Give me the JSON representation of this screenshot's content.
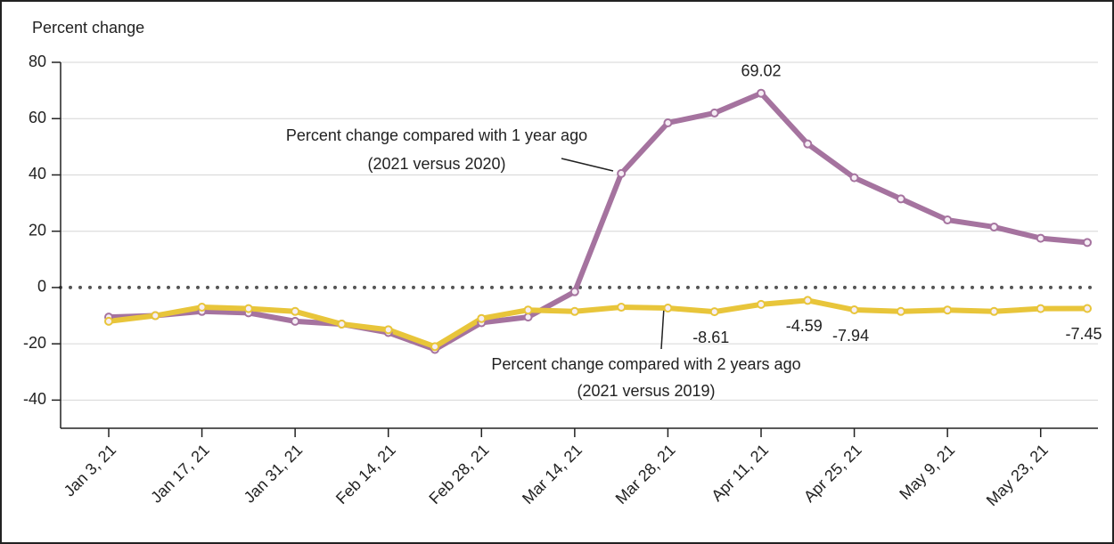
{
  "chart_data": {
    "type": "line",
    "y_label": "Percent change",
    "categories": [
      "Jan 3, 21",
      null,
      "Jan 17, 21",
      null,
      "Jan 31, 21",
      null,
      "Feb 14, 21",
      null,
      "Feb 28, 21",
      null,
      "Mar 14, 21",
      null,
      "Mar 28, 21",
      null,
      "Apr 11, 21",
      null,
      "Apr 25, 21",
      null,
      "May 9, 21",
      null,
      "May 23, 21",
      null
    ],
    "series": [
      {
        "name": "Percent change compared with 1 year ago (2021 versus 2020)",
        "color": "#a5739f",
        "label_lines": [
          "Percent change compared with 1 year ago",
          "(2021 versus 2020)"
        ],
        "values": [
          -10.5,
          -10,
          -8.5,
          -9,
          -12,
          -13,
          -16,
          -22,
          -12.5,
          -10.5,
          -1.5,
          40.5,
          58.5,
          62,
          69.02,
          51,
          39,
          31.5,
          24,
          21.5,
          17.5,
          16
        ],
        "value_labels": [
          null,
          null,
          null,
          null,
          null,
          null,
          null,
          null,
          null,
          null,
          null,
          null,
          null,
          null,
          "69.02",
          null,
          null,
          null,
          null,
          null,
          null,
          null
        ]
      },
      {
        "name": "Percent change compared with 2 years ago (2021 versus 2019)",
        "color": "#e8c53a",
        "label_lines": [
          "Percent change compared with 2 years ago",
          "(2021 versus 2019)"
        ],
        "values": [
          -12,
          -10,
          -7,
          -7.5,
          -8.5,
          -13,
          -15,
          -21,
          -11,
          -8,
          -8.5,
          -7,
          -7.3,
          -8.61,
          -6,
          -4.59,
          -7.94,
          -8.5,
          -8,
          -8.5,
          -7.5,
          -7.45
        ],
        "value_labels": [
          null,
          null,
          null,
          null,
          null,
          null,
          null,
          null,
          null,
          null,
          null,
          null,
          null,
          "-8.61",
          null,
          "-4.59",
          "-7.94",
          null,
          null,
          null,
          null,
          "-7.45"
        ]
      }
    ],
    "ylim": [
      -50,
      80
    ],
    "yticks": [
      -40,
      -20,
      0,
      20,
      40,
      60,
      80
    ],
    "grid": true,
    "zero_line": true
  }
}
